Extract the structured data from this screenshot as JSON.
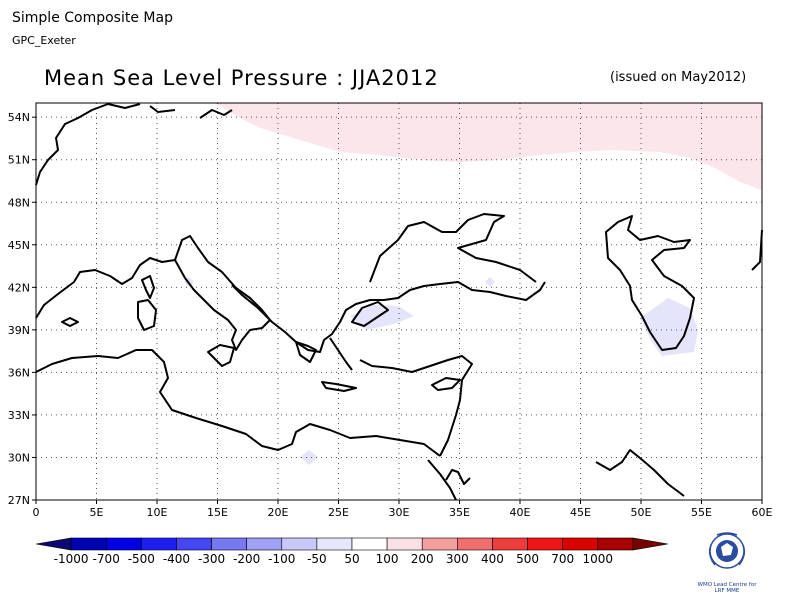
{
  "header": {
    "title": "Simple Composite Map",
    "subtitle": "GPC_Exeter"
  },
  "map": {
    "title": "Mean Sea Level Pressure : JJA2012",
    "issued": "(issued on May2012)",
    "lon_range": [
      0,
      60
    ],
    "lat_range": [
      27,
      55
    ],
    "x_ticks": [
      "0",
      "5E",
      "10E",
      "15E",
      "20E",
      "25E",
      "30E",
      "35E",
      "40E",
      "45E",
      "50E",
      "55E",
      "60E"
    ],
    "y_ticks": [
      "27N",
      "30N",
      "33N",
      "36N",
      "39N",
      "42N",
      "45N",
      "48N",
      "51N",
      "54N"
    ],
    "grid": "dotted",
    "anomaly_colors": {
      "positive_50_100": "#fbe6ec",
      "negative_100_50": "#e4e4fb"
    }
  },
  "colorbar": {
    "labels": [
      "-1000",
      "-700",
      "-500",
      "-400",
      "-300",
      "-200",
      "-100",
      "-50",
      "50",
      "100",
      "200",
      "300",
      "400",
      "500",
      "700",
      "1000"
    ],
    "colors": [
      "#0a0a70",
      "#0000b4",
      "#0000e6",
      "#1e1ef0",
      "#4646f5",
      "#7878f5",
      "#a0a0f5",
      "#c8c8fa",
      "#e6e6fc",
      "#ffffff",
      "#fbe1e6",
      "#f5a0a0",
      "#f06e6e",
      "#f03c3c",
      "#f01414",
      "#dc0000",
      "#aa0000",
      "#780000"
    ]
  },
  "logo": {
    "line1": "WMO Lead Centre for",
    "line2": "LRF MME"
  }
}
